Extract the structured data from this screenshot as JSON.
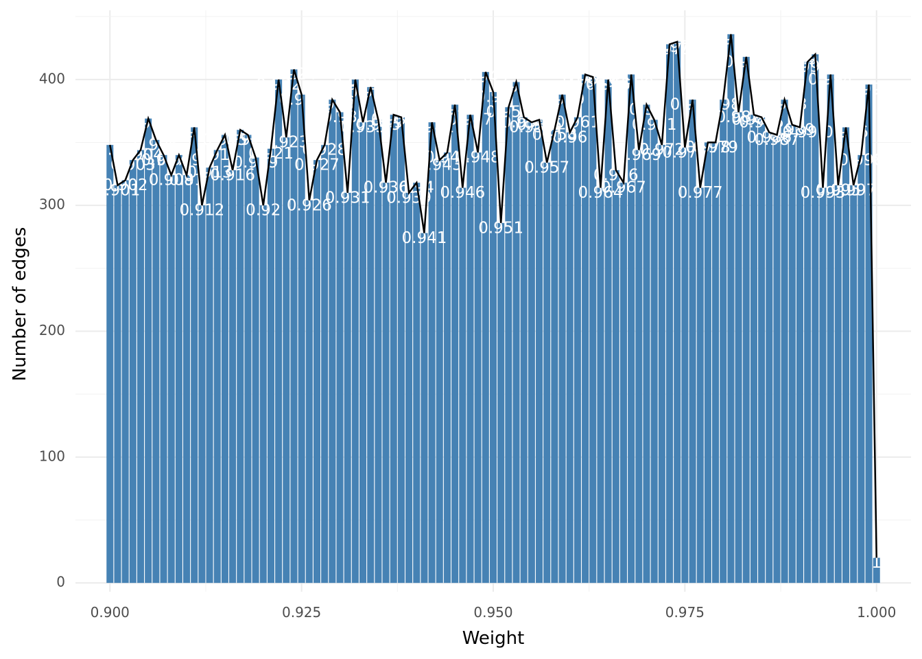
{
  "chart_data": {
    "type": "bar",
    "xlabel": "Weight",
    "ylabel": "Number of edges",
    "xlim": [
      0.8955,
      1.0045
    ],
    "ylim": [
      -7,
      455
    ],
    "x_ticks": [
      "0.900",
      "0.925",
      "0.950",
      "0.975",
      "1.000"
    ],
    "x_tick_values": [
      0.9,
      0.925,
      0.95,
      0.975,
      1.0
    ],
    "y_ticks": [
      "0",
      "100",
      "200",
      "300",
      "400"
    ],
    "y_tick_values": [
      0,
      100,
      200,
      300,
      400
    ],
    "grid": true,
    "bar_color": "#4682b4",
    "line_color": "#000000",
    "label_color": "#ffffff",
    "overlay": "line through bar tops",
    "x": [
      0.9,
      0.901,
      0.902,
      0.903,
      0.904,
      0.905,
      0.906,
      0.907,
      0.908,
      0.909,
      0.91,
      0.911,
      0.912,
      0.913,
      0.914,
      0.915,
      0.916,
      0.917,
      0.918,
      0.919,
      0.92,
      0.921,
      0.922,
      0.923,
      0.924,
      0.925,
      0.926,
      0.927,
      0.928,
      0.929,
      0.93,
      0.931,
      0.932,
      0.933,
      0.934,
      0.935,
      0.936,
      0.937,
      0.938,
      0.939,
      0.94,
      0.941,
      0.942,
      0.943,
      0.944,
      0.945,
      0.946,
      0.947,
      0.948,
      0.949,
      0.95,
      0.951,
      0.952,
      0.953,
      0.954,
      0.955,
      0.956,
      0.957,
      0.958,
      0.959,
      0.96,
      0.961,
      0.962,
      0.963,
      0.964,
      0.965,
      0.966,
      0.967,
      0.968,
      0.969,
      0.97,
      0.971,
      0.972,
      0.973,
      0.974,
      0.975,
      0.976,
      0.977,
      0.978,
      0.979,
      0.98,
      0.981,
      0.982,
      0.983,
      0.984,
      0.985,
      0.986,
      0.987,
      0.988,
      0.989,
      0.99,
      0.991,
      0.992,
      0.993,
      0.994,
      0.995,
      0.996,
      0.997,
      0.998,
      0.999,
      1.0
    ],
    "values": [
      348,
      316,
      320,
      336,
      344,
      369,
      352,
      340,
      324,
      340,
      324,
      362,
      300,
      330,
      344,
      356,
      328,
      360,
      356,
      338,
      300,
      345,
      400,
      354,
      408,
      388,
      304,
      336,
      348,
      384,
      374,
      310,
      400,
      366,
      394,
      368,
      318,
      372,
      370,
      310,
      318,
      278,
      366,
      336,
      342,
      380,
      314,
      372,
      342,
      406,
      390,
      286,
      378,
      398,
      370,
      366,
      368,
      334,
      360,
      388,
      358,
      370,
      404,
      402,
      314,
      400,
      328,
      318,
      404,
      344,
      380,
      368,
      348,
      428,
      430,
      346,
      384,
      314,
      350,
      350,
      384,
      436,
      374,
      418,
      372,
      370,
      358,
      356,
      384,
      364,
      362,
      414,
      420,
      314,
      404,
      316,
      362,
      316,
      340,
      396,
      20
    ],
    "labels": [
      "0.9",
      "0.901",
      "0.902",
      "0.903",
      "0.904",
      "0.905",
      "0.906",
      "0.907",
      "0.908",
      "0.909",
      "0.91",
      "0.911",
      "0.912",
      "0.913",
      "0.914",
      "0.915",
      "0.916",
      "0.917",
      "0.918",
      "0.919",
      "0.92",
      "0.921",
      "0.922",
      "0.923",
      "0.924",
      "0.925",
      "0.926",
      "0.927",
      "0.928",
      "0.929",
      "0.93",
      "0.931",
      "0.932",
      "0.933",
      "0.934",
      "0.935",
      "0.936",
      "0.937",
      "0.938",
      "0.939",
      "0.94",
      "0.941",
      "0.942",
      "0.943",
      "0.944",
      "0.945",
      "0.946",
      "0.947",
      "0.948",
      "0.949",
      "0.95",
      "0.951",
      "0.952",
      "0.953",
      "0.954",
      "0.955",
      "0.956",
      "0.957",
      "0.958",
      "0.959",
      "0.96",
      "0.961",
      "0.962",
      "0.963",
      "0.964",
      "0.965",
      "0.966",
      "0.967",
      "0.968",
      "0.969",
      "0.97",
      "0.971",
      "0.972",
      "0.973",
      "0.974",
      "0.975",
      "0.976",
      "0.977",
      "0.978",
      "0.979",
      "0.98",
      "0.981",
      "0.982",
      "0.983",
      "0.984",
      "0.985",
      "0.986",
      "0.987",
      "0.988",
      "0.989",
      "0.99",
      "0.991",
      "0.992",
      "0.993",
      "0.994",
      "0.995",
      "0.996",
      "0.997",
      "0.998",
      "0.999",
      "1"
    ]
  }
}
